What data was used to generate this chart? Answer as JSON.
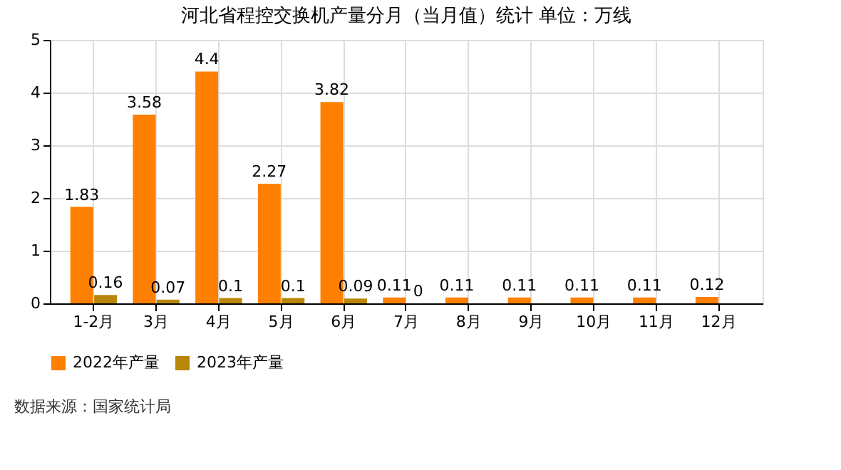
{
  "chart_data": {
    "type": "bar",
    "title": "河北省程控交换机产量分月（当月值）统计  单位：万线",
    "categories": [
      "1-2月",
      "3月",
      "4月",
      "5月",
      "6月",
      "7月",
      "8月",
      "9月",
      "10月",
      "11月",
      "12月"
    ],
    "series": [
      {
        "name": "2022年产量",
        "color": "#ff8000",
        "values": [
          1.83,
          3.58,
          4.4,
          2.27,
          3.82,
          0.11,
          0.11,
          0.11,
          0.11,
          0.11,
          0.12
        ]
      },
      {
        "name": "2023年产量",
        "color": "#b8860b",
        "values": [
          0.16,
          0.07,
          0.1,
          0.1,
          0.09,
          0,
          null,
          null,
          null,
          null,
          null
        ]
      }
    ],
    "ylim": [
      0,
      5
    ],
    "yticks": [
      0,
      1,
      2,
      3,
      4,
      5
    ],
    "grid": true,
    "legend": "bottom",
    "data_labels": true,
    "annotations": [
      "数据来源：国家统计局"
    ]
  }
}
